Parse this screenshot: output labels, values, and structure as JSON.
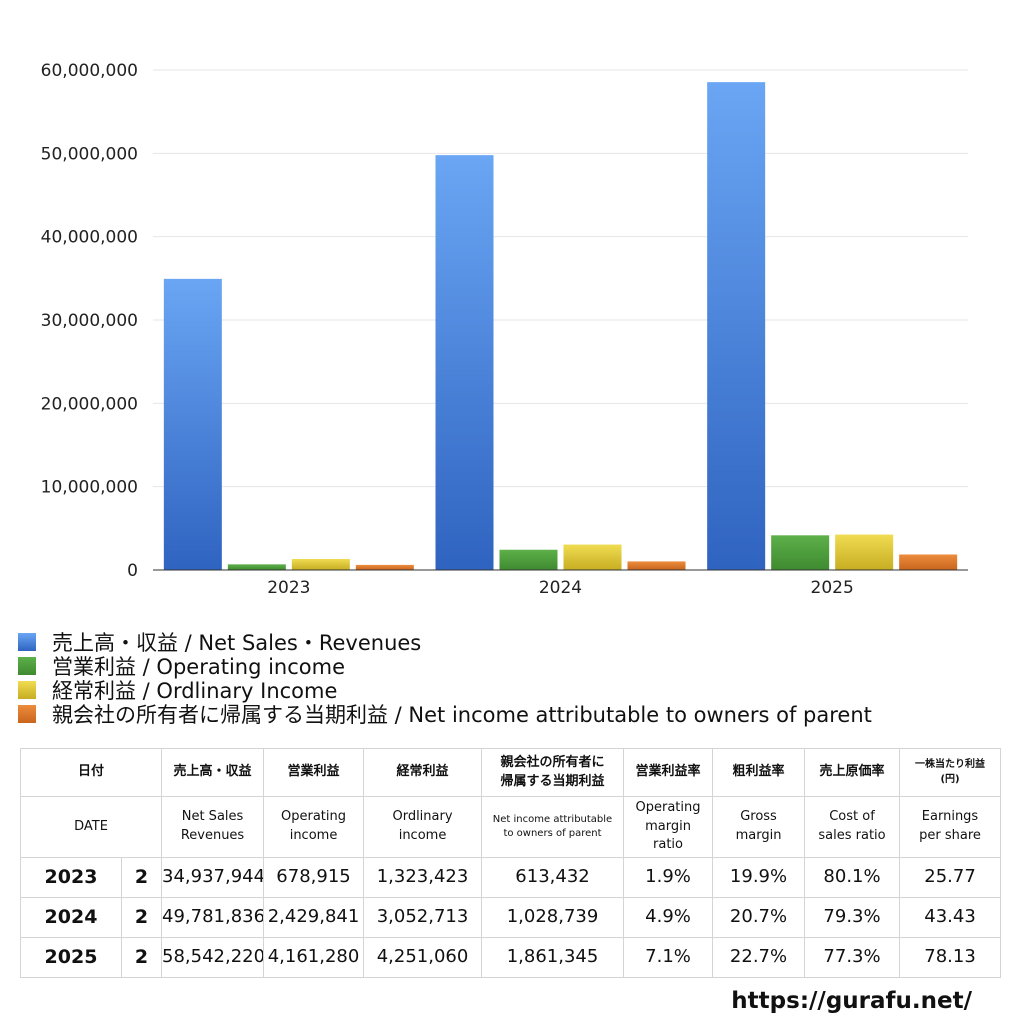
{
  "chart_data": {
    "type": "bar",
    "categories": [
      "2023",
      "2024",
      "2025"
    ],
    "series": [
      {
        "name": "売上高・収益 / Net Sales・Revenues",
        "color": "#3a78d8",
        "values": [
          34937944,
          49781836,
          58542220
        ]
      },
      {
        "name": "営業利益 / Operating income",
        "color": "#4f9a3c",
        "values": [
          678915,
          2429841,
          4161280
        ]
      },
      {
        "name": "経常利益 / Ordlinary Income",
        "color": "#d8c134",
        "values": [
          1323423,
          3052713,
          4251060
        ]
      },
      {
        "name": "親会社の所有者に帰属する当期利益 / Net income attributable to owners of parent",
        "color": "#dc7a2c",
        "values": [
          613432,
          1028739,
          1861345
        ]
      }
    ],
    "ylim": [
      0,
      60000000
    ],
    "yticks": [
      "0",
      "10,000,000",
      "20,000,000",
      "30,000,000",
      "40,000,000",
      "50,000,000",
      "60,000,000"
    ],
    "title": "",
    "xlabel": "",
    "ylabel": "",
    "grid": true,
    "legend": "bottom"
  },
  "table": {
    "header_jp": [
      "日付",
      "売上高・収益",
      "営業利益",
      "経常利益",
      "親会社の所有者に",
      "帰属する当期利益",
      "営業利益率",
      "粗利益率",
      "売上原価率",
      "一株当たり利益",
      "(円)"
    ],
    "header_en": {
      "date": "DATE",
      "sales": [
        "Net Sales",
        "Revenues"
      ],
      "op": [
        "Operating",
        "income"
      ],
      "ord": [
        "Ordlinary",
        "income"
      ],
      "net": [
        "Net income attributable",
        "to owners of parent"
      ],
      "opm": [
        "Operating",
        "margin",
        "ratio"
      ],
      "gm": [
        "Gross",
        "margin"
      ],
      "cost": [
        "Cost of",
        "sales ratio"
      ],
      "eps": [
        "Earnings",
        "per share"
      ]
    },
    "rows": [
      {
        "year": "2023",
        "month": "2",
        "sales": "34,937,944",
        "op": "678,915",
        "ord": "1,323,423",
        "net": "613,432",
        "opm": "1.9%",
        "gm": "19.9%",
        "cost": "80.1%",
        "eps": "25.77"
      },
      {
        "year": "2024",
        "month": "2",
        "sales": "49,781,836",
        "op": "2,429,841",
        "ord": "3,052,713",
        "net": "1,028,739",
        "opm": "4.9%",
        "gm": "20.7%",
        "cost": "79.3%",
        "eps": "43.43"
      },
      {
        "year": "2025",
        "month": "2",
        "sales": "58,542,220",
        "op": "4,161,280",
        "ord": "4,251,060",
        "net": "1,861,345",
        "opm": "7.1%",
        "gm": "22.7%",
        "cost": "77.3%",
        "eps": "78.13"
      }
    ]
  },
  "footer": {
    "site": "https://gurafu.net/"
  }
}
